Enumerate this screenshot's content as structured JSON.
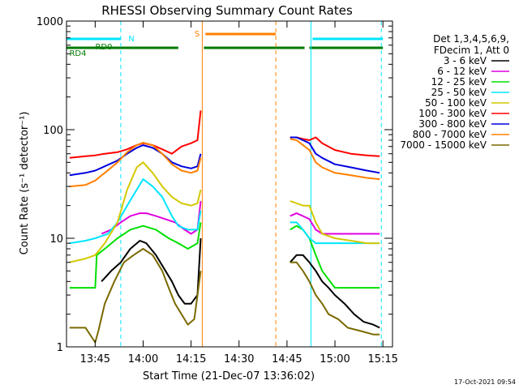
{
  "chart_data": {
    "type": "line",
    "title": "RHESSI Observing Summary Count Rates",
    "xlabel": "Start Time (21-Dec-07 13:36:02)",
    "ylabel": "Count Rate (s⁻¹ detector⁻¹)",
    "yscale": "log",
    "ylim": [
      1,
      1000
    ],
    "xlim": [
      "13:36:02",
      "15:18:00"
    ],
    "x_ticks": [
      "13:45",
      "14:00",
      "14:15",
      "14:30",
      "14:45",
      "15:00",
      "15:15"
    ],
    "y_ticks": [
      "1",
      "10",
      "100",
      "1000"
    ],
    "grid": false,
    "legend_position": "right",
    "legend_header": [
      "Det 1,3,4,5,6,9,",
      "FDecim 1, Att 0"
    ],
    "timestamp": "17-Oct-2021 09:54",
    "flag_labels": [
      {
        "text": "N",
        "color": "#00e5ff"
      },
      {
        "text": "S",
        "color": "#ff8000"
      },
      {
        "text": "RD0",
        "color": "#007a00"
      },
      {
        "text": "RD4",
        "color": "#007a00"
      }
    ],
    "flag_bars": [
      {
        "flag": "N",
        "start": "13:36:02",
        "end": "13:53:00",
        "color": "#00e5ff"
      },
      {
        "flag": "N",
        "start": "14:53:00",
        "end": "15:15:00",
        "color": "#00e5ff"
      },
      {
        "flag": "S",
        "start": "14:19:30",
        "end": "14:41:30",
        "color": "#ff8000"
      },
      {
        "flag": "RD",
        "start": "13:36:02",
        "end": "14:11:00",
        "color": "#007a00"
      },
      {
        "flag": "RD",
        "start": "14:19:00",
        "end": "14:41:30",
        "color": "#007a00"
      },
      {
        "flag": "RD",
        "start": "14:41:30",
        "end": "14:50:30",
        "color": "#007a00"
      },
      {
        "flag": "RD",
        "start": "14:52:00",
        "end": "15:15:00",
        "color": "#007a00"
      }
    ],
    "event_lines": [
      {
        "time": "13:53:00",
        "color": "#00e5ff",
        "style": "dashed"
      },
      {
        "time": "14:18:30",
        "color": "#ff8000",
        "style": "solid"
      },
      {
        "time": "14:41:30",
        "color": "#ff8000",
        "style": "dashed"
      },
      {
        "time": "14:52:30",
        "color": "#00e5ff",
        "style": "solid"
      },
      {
        "time": "15:14:30",
        "color": "#00e5ff",
        "style": "dashed"
      }
    ],
    "series": [
      {
        "name": "3 - 6 keV",
        "color": "#000000",
        "segments": [
          {
            "x": [
              "13:47:00",
              "13:50:00",
              "13:53:00",
              "13:56:00",
              "13:59:00",
              "14:01:00",
              "14:04:00",
              "14:07:00",
              "14:09:00",
              "14:11:00",
              "14:13:00",
              "14:15:00",
              "14:17:00",
              "14:18:00"
            ],
            "y": [
              4,
              5,
              6,
              8,
              9.5,
              9,
              7,
              5,
              4,
              3,
              2.5,
              2.5,
              3,
              10
            ]
          },
          {
            "x": [
              "14:46:00",
              "14:48:00",
              "14:50:00",
              "14:52:00",
              "14:54:00",
              "14:56:00",
              "14:58:00",
              "15:00:00",
              "15:03:00",
              "15:06:00",
              "15:09:00",
              "15:12:00",
              "15:14:00"
            ],
            "y": [
              6,
              7,
              7,
              6,
              5,
              4,
              3.5,
              3,
              2.5,
              2,
              1.7,
              1.6,
              1.5
            ]
          }
        ]
      },
      {
        "name": "6 - 12 keV",
        "color": "#e000e0",
        "segments": [
          {
            "x": [
              "13:47:00",
              "13:50:00",
              "13:53:00",
              "13:56:00",
              "13:59:00",
              "14:01:00",
              "14:04:00",
              "14:07:00",
              "14:10:00",
              "14:13:00",
              "14:15:00",
              "14:17:00",
              "14:18:00"
            ],
            "y": [
              11,
              12,
              14,
              16,
              17,
              17,
              16,
              15,
              14,
              12,
              11,
              12,
              22
            ]
          },
          {
            "x": [
              "14:46:00",
              "14:48:00",
              "14:50:00",
              "14:52:00",
              "14:54:00",
              "14:56:00",
              "15:00:00",
              "15:05:00",
              "15:10:00",
              "15:14:00"
            ],
            "y": [
              16,
              17,
              16,
              15,
              12,
              11,
              11,
              11,
              11,
              11
            ]
          }
        ]
      },
      {
        "name": "12 - 25 keV",
        "color": "#00e000",
        "segments": [
          {
            "x": [
              "13:37:00",
              "13:42:00",
              "13:45:00",
              "13:45:30",
              "13:48:00",
              "13:52:00",
              "13:56:00",
              "14:00:00",
              "14:04:00",
              "14:08:00",
              "14:11:00",
              "14:14:00",
              "14:17:00",
              "14:18:00"
            ],
            "y": [
              3.5,
              3.5,
              3.5,
              7,
              8,
              10,
              12,
              13,
              12,
              10,
              9,
              8,
              9,
              14
            ]
          },
          {
            "x": [
              "14:46:00",
              "14:48:00",
              "14:50:00",
              "14:52:00",
              "14:54:00",
              "14:56:00",
              "15:00:00",
              "15:05:00",
              "15:10:00",
              "15:14:00"
            ],
            "y": [
              12,
              13,
              12,
              10,
              7,
              5,
              3.5,
              3.5,
              3.5,
              3.5
            ]
          }
        ]
      },
      {
        "name": "25 - 50 keV",
        "color": "#00e5ff",
        "segments": [
          {
            "x": [
              "13:37:00",
              "13:42:00",
              "13:45:00",
              "13:49:00",
              "13:52:00",
              "13:55:00",
              "13:58:00",
              "14:00:00",
              "14:03:00",
              "14:06:00",
              "14:09:00",
              "14:11:00",
              "14:14:00",
              "14:17:00",
              "14:18:00"
            ],
            "y": [
              9,
              9.5,
              10,
              11,
              14,
              20,
              28,
              35,
              30,
              24,
              16,
              13,
              12,
              12,
              18
            ]
          },
          {
            "x": [
              "14:46:00",
              "14:48:00",
              "14:50:00",
              "14:52:00",
              "14:54:00",
              "14:56:00",
              "15:00:00",
              "15:05:00",
              "15:10:00",
              "15:14:00"
            ],
            "y": [
              14,
              14,
              12,
              10,
              9,
              9,
              9,
              9,
              9,
              9
            ]
          }
        ]
      },
      {
        "name": "50 - 100 keV",
        "color": "#d4c800",
        "segments": [
          {
            "x": [
              "13:37:00",
              "13:42:00",
              "13:45:00",
              "13:48:00",
              "13:52:00",
              "13:55:00",
              "13:58:00",
              "14:00:00",
              "14:03:00",
              "14:06:00",
              "14:09:00",
              "14:12:00",
              "14:15:00",
              "14:17:00",
              "14:18:00"
            ],
            "y": [
              6,
              6.5,
              7,
              9,
              14,
              28,
              45,
              50,
              40,
              30,
              24,
              21,
              20,
              21,
              28
            ]
          },
          {
            "x": [
              "14:46:00",
              "14:48:00",
              "14:50:00",
              "14:52:00",
              "14:54:00",
              "14:56:00",
              "15:00:00",
              "15:05:00",
              "15:10:00",
              "15:14:00"
            ],
            "y": [
              22,
              21,
              20,
              20,
              14,
              11,
              10,
              9.5,
              9,
              9
            ]
          }
        ]
      },
      {
        "name": "100 - 300 keV",
        "color": "#ff0000",
        "segments": [
          {
            "x": [
              "13:37:00",
              "13:42:00",
              "13:45:00",
              "13:48:00",
              "13:52:00",
              "13:55:00",
              "13:58:00",
              "14:00:00",
              "14:03:00",
              "14:06:00",
              "14:09:00",
              "14:12:00",
              "14:15:00",
              "14:17:00",
              "14:18:00"
            ],
            "y": [
              55,
              57,
              58,
              60,
              62,
              66,
              72,
              75,
              72,
              66,
              60,
              70,
              75,
              80,
              150
            ]
          },
          {
            "x": [
              "14:46:00",
              "14:48:00",
              "14:50:00",
              "14:52:00",
              "14:54:00",
              "14:56:00",
              "15:00:00",
              "15:05:00",
              "15:10:00",
              "15:14:00"
            ],
            "y": [
              85,
              85,
              82,
              80,
              85,
              75,
              65,
              60,
              58,
              57
            ]
          }
        ]
      },
      {
        "name": "300 - 800 keV",
        "color": "#0000dd",
        "segments": [
          {
            "x": [
              "13:37:00",
              "13:42:00",
              "13:45:00",
              "13:48:00",
              "13:52:00",
              "13:55:00",
              "13:58:00",
              "14:00:00",
              "14:03:00",
              "14:06:00",
              "14:09:00",
              "14:12:00",
              "14:15:00",
              "14:17:00",
              "14:18:00"
            ],
            "y": [
              38,
              40,
              42,
              46,
              52,
              60,
              68,
              72,
              68,
              60,
              50,
              46,
              44,
              46,
              60
            ]
          },
          {
            "x": [
              "14:46:00",
              "14:48:00",
              "14:50:00",
              "14:52:00",
              "14:54:00",
              "14:56:00",
              "15:00:00",
              "15:05:00",
              "15:10:00",
              "15:14:00"
            ],
            "y": [
              85,
              85,
              80,
              75,
              60,
              55,
              48,
              45,
              42,
              40
            ]
          }
        ]
      },
      {
        "name": "800 - 7000 keV",
        "color": "#ff8000",
        "segments": [
          {
            "x": [
              "13:37:00",
              "13:42:00",
              "13:45:00",
              "13:48:00",
              "13:52:00",
              "13:55:00",
              "13:58:00",
              "14:00:00",
              "14:03:00",
              "14:06:00",
              "14:09:00",
              "14:12:00",
              "14:15:00",
              "14:17:00",
              "14:18:00"
            ],
            "y": [
              30,
              31,
              34,
              40,
              50,
              62,
              72,
              76,
              72,
              60,
              48,
              42,
              40,
              42,
              55
            ]
          },
          {
            "x": [
              "14:46:00",
              "14:48:00",
              "14:50:00",
              "14:52:00",
              "14:54:00",
              "14:56:00",
              "15:00:00",
              "15:05:00",
              "15:10:00",
              "15:14:00"
            ],
            "y": [
              82,
              80,
              72,
              65,
              50,
              45,
              40,
              38,
              36,
              35
            ]
          }
        ]
      },
      {
        "name": "7000 - 15000 keV",
        "color": "#7a6a00",
        "segments": [
          {
            "x": [
              "13:37:00",
              "13:42:00",
              "13:45:00",
              "13:46:00",
              "13:48:00",
              "13:51:00",
              "13:54:00",
              "13:57:00",
              "14:00:00",
              "14:03:00",
              "14:06:00",
              "14:08:00",
              "14:10:00",
              "14:12:00",
              "14:14:00",
              "14:16:00",
              "14:18:00"
            ],
            "y": [
              1.5,
              1.5,
              1.1,
              1.4,
              2.5,
              4,
              6,
              7,
              8,
              7,
              5,
              3.5,
              2.5,
              2,
              1.6,
              1.8,
              5
            ]
          },
          {
            "x": [
              "14:46:00",
              "14:48:00",
              "14:50:00",
              "14:52:00",
              "14:54:00",
              "14:56:00",
              "14:58:00",
              "15:01:00",
              "15:04:00",
              "15:08:00",
              "15:12:00",
              "15:14:00"
            ],
            "y": [
              6,
              6,
              5,
              4,
              3,
              2.5,
              2,
              1.8,
              1.5,
              1.4,
              1.3,
              1.3
            ]
          }
        ]
      }
    ]
  }
}
